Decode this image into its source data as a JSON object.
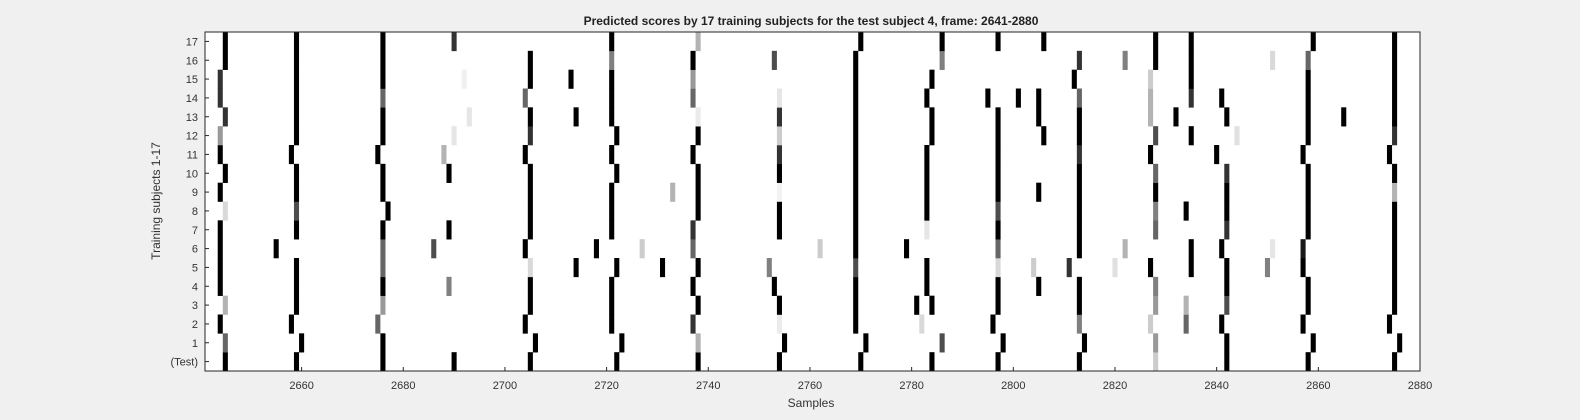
{
  "chart_data": {
    "type": "heatmap",
    "title": "Predicted scores by 17 training subjects for the test subject 4, frame: 2641-2880",
    "xlabel": "Samples",
    "ylabel": "Training subjects 1-17",
    "xlim": [
      2641,
      2880
    ],
    "xticks": [
      2660,
      2680,
      2700,
      2720,
      2740,
      2760,
      2780,
      2800,
      2820,
      2840,
      2860,
      2880
    ],
    "row_labels": [
      "(Test)",
      "1",
      "2",
      "3",
      "4",
      "5",
      "6",
      "7",
      "8",
      "9",
      "10",
      "11",
      "12",
      "13",
      "14",
      "15",
      "16",
      "17"
    ],
    "value_encoding": "grayscale: 0 = white, 1 = black",
    "rows": [
      {
        "label": "(Test)",
        "cells": [
          [
            2645,
            1
          ],
          [
            2659,
            1
          ],
          [
            2676,
            1
          ],
          [
            2690,
            1
          ],
          [
            2705,
            1
          ],
          [
            2722,
            1
          ],
          [
            2738,
            1
          ],
          [
            2754,
            1
          ],
          [
            2770,
            1
          ],
          [
            2784,
            1
          ],
          [
            2797,
            1
          ],
          [
            2813,
            1
          ],
          [
            2828,
            0.2
          ],
          [
            2842,
            1
          ],
          [
            2858,
            1
          ],
          [
            2875,
            1
          ]
        ]
      },
      {
        "label": "1",
        "cells": [
          [
            2645,
            0.6
          ],
          [
            2660,
            1
          ],
          [
            2676,
            1
          ],
          [
            2706,
            1
          ],
          [
            2723,
            1
          ],
          [
            2738,
            0.3
          ],
          [
            2755,
            1
          ],
          [
            2771,
            1
          ],
          [
            2786,
            0.7
          ],
          [
            2798,
            1
          ],
          [
            2814,
            1
          ],
          [
            2828,
            0.4
          ],
          [
            2842,
            1
          ],
          [
            2859,
            1
          ],
          [
            2876,
            1
          ]
        ]
      },
      {
        "label": "2",
        "cells": [
          [
            2644,
            1
          ],
          [
            2658,
            1
          ],
          [
            2675,
            0.6
          ],
          [
            2704,
            1
          ],
          [
            2721,
            1
          ],
          [
            2737,
            0.8
          ],
          [
            2754,
            0.08
          ],
          [
            2769,
            1
          ],
          [
            2782,
            0.15
          ],
          [
            2796,
            1
          ],
          [
            2813,
            0.5
          ],
          [
            2827,
            0.2
          ],
          [
            2834,
            0.6
          ],
          [
            2841,
            1
          ],
          [
            2857,
            1
          ],
          [
            2874,
            1
          ]
        ]
      },
      {
        "label": "3",
        "cells": [
          [
            2645,
            0.3
          ],
          [
            2659,
            1
          ],
          [
            2676,
            0.4
          ],
          [
            2705,
            1
          ],
          [
            2721,
            1
          ],
          [
            2738,
            1
          ],
          [
            2754,
            1
          ],
          [
            2769,
            1
          ],
          [
            2781,
            1
          ],
          [
            2784,
            1
          ],
          [
            2797,
            1
          ],
          [
            2813,
            1
          ],
          [
            2828,
            0.4
          ],
          [
            2834,
            0.3
          ],
          [
            2842,
            0.7
          ],
          [
            2858,
            1
          ],
          [
            2875,
            1
          ]
        ]
      },
      {
        "label": "4",
        "cells": [
          [
            2644,
            1
          ],
          [
            2659,
            1
          ],
          [
            2676,
            1
          ],
          [
            2689,
            0.5
          ],
          [
            2705,
            1
          ],
          [
            2721,
            1
          ],
          [
            2737,
            1
          ],
          [
            2753,
            1
          ],
          [
            2769,
            1
          ],
          [
            2783,
            1
          ],
          [
            2797,
            1
          ],
          [
            2805,
            1
          ],
          [
            2813,
            1
          ],
          [
            2828,
            0.5
          ],
          [
            2842,
            1
          ],
          [
            2858,
            1
          ],
          [
            2875,
            1
          ]
        ]
      },
      {
        "label": "5",
        "cells": [
          [
            2644,
            1
          ],
          [
            2659,
            1
          ],
          [
            2676,
            0.6
          ],
          [
            2705,
            0.15
          ],
          [
            2714,
            1
          ],
          [
            2722,
            1
          ],
          [
            2731,
            1
          ],
          [
            2738,
            1
          ],
          [
            2752,
            0.5
          ],
          [
            2769,
            0.7
          ],
          [
            2783,
            1
          ],
          [
            2797,
            0.15
          ],
          [
            2804,
            0.2
          ],
          [
            2811,
            0.8
          ],
          [
            2820,
            0.12
          ],
          [
            2827,
            1
          ],
          [
            2835,
            1
          ],
          [
            2842,
            1
          ],
          [
            2850,
            0.5
          ],
          [
            2857,
            1
          ],
          [
            2875,
            1
          ]
        ]
      },
      {
        "label": "6",
        "cells": [
          [
            2644,
            1
          ],
          [
            2655,
            1
          ],
          [
            2676,
            0.6
          ],
          [
            2686,
            0.7
          ],
          [
            2704,
            1
          ],
          [
            2718,
            1
          ],
          [
            2727,
            0.2
          ],
          [
            2737,
            0.6
          ],
          [
            2762,
            0.2
          ],
          [
            2769,
            1
          ],
          [
            2779,
            1
          ],
          [
            2797,
            0.6
          ],
          [
            2813,
            1
          ],
          [
            2822,
            0.3
          ],
          [
            2835,
            1
          ],
          [
            2841,
            1
          ],
          [
            2851,
            0.1
          ],
          [
            2857,
            0.9
          ],
          [
            2875,
            1
          ]
        ]
      },
      {
        "label": "7",
        "cells": [
          [
            2644,
            1
          ],
          [
            2659,
            1
          ],
          [
            2676,
            1
          ],
          [
            2689,
            1
          ],
          [
            2705,
            1
          ],
          [
            2721,
            1
          ],
          [
            2737,
            0.8
          ],
          [
            2754,
            1
          ],
          [
            2769,
            1
          ],
          [
            2783,
            0.1
          ],
          [
            2797,
            1
          ],
          [
            2813,
            1
          ],
          [
            2828,
            0.6
          ],
          [
            2842,
            0.8
          ],
          [
            2858,
            1
          ],
          [
            2875,
            1
          ]
        ]
      },
      {
        "label": "8",
        "cells": [
          [
            2645,
            0.15
          ],
          [
            2659,
            0.7
          ],
          [
            2677,
            1
          ],
          [
            2705,
            1
          ],
          [
            2721,
            1
          ],
          [
            2738,
            1
          ],
          [
            2754,
            1
          ],
          [
            2769,
            1
          ],
          [
            2783,
            1
          ],
          [
            2797,
            0.7
          ],
          [
            2813,
            1
          ],
          [
            2828,
            0.5
          ],
          [
            2834,
            1
          ],
          [
            2842,
            1
          ],
          [
            2858,
            1
          ],
          [
            2875,
            1
          ]
        ]
      },
      {
        "label": "9",
        "cells": [
          [
            2644,
            1
          ],
          [
            2659,
            1
          ],
          [
            2676,
            1
          ],
          [
            2705,
            1
          ],
          [
            2721,
            1
          ],
          [
            2733,
            0.3
          ],
          [
            2738,
            1
          ],
          [
            2754,
            0.05
          ],
          [
            2769,
            1
          ],
          [
            2783,
            1
          ],
          [
            2797,
            1
          ],
          [
            2805,
            1
          ],
          [
            2813,
            1
          ],
          [
            2828,
            1
          ],
          [
            2842,
            1
          ],
          [
            2858,
            1
          ],
          [
            2875,
            0.3
          ]
        ]
      },
      {
        "label": "10",
        "cells": [
          [
            2645,
            1
          ],
          [
            2659,
            1
          ],
          [
            2676,
            1
          ],
          [
            2689,
            1
          ],
          [
            2705,
            1
          ],
          [
            2722,
            1
          ],
          [
            2738,
            1
          ],
          [
            2754,
            1
          ],
          [
            2769,
            1
          ],
          [
            2783,
            1
          ],
          [
            2797,
            1
          ],
          [
            2813,
            1
          ],
          [
            2828,
            0.6
          ],
          [
            2842,
            0.8
          ],
          [
            2858,
            1
          ],
          [
            2875,
            1
          ]
        ]
      },
      {
        "label": "11",
        "cells": [
          [
            2644,
            1
          ],
          [
            2658,
            1
          ],
          [
            2675,
            1
          ],
          [
            2688,
            0.3
          ],
          [
            2704,
            1
          ],
          [
            2721,
            1
          ],
          [
            2737,
            1
          ],
          [
            2754,
            0.8
          ],
          [
            2769,
            1
          ],
          [
            2783,
            1
          ],
          [
            2797,
            1
          ],
          [
            2813,
            0.8
          ],
          [
            2827,
            1
          ],
          [
            2840,
            1
          ],
          [
            2857,
            1
          ],
          [
            2874,
            1
          ]
        ]
      },
      {
        "label": "12",
        "cells": [
          [
            2644,
            0.4
          ],
          [
            2659,
            1
          ],
          [
            2676,
            1
          ],
          [
            2690,
            0.1
          ],
          [
            2705,
            0.8
          ],
          [
            2722,
            1
          ],
          [
            2738,
            1
          ],
          [
            2754,
            0.2
          ],
          [
            2769,
            1
          ],
          [
            2784,
            1
          ],
          [
            2797,
            1
          ],
          [
            2806,
            1
          ],
          [
            2813,
            1
          ],
          [
            2828,
            0.7
          ],
          [
            2835,
            1
          ],
          [
            2844,
            0.12
          ],
          [
            2858,
            1
          ],
          [
            2875,
            0.8
          ]
        ]
      },
      {
        "label": "13",
        "cells": [
          [
            2645,
            0.8
          ],
          [
            2659,
            1
          ],
          [
            2676,
            1
          ],
          [
            2693,
            0.1
          ],
          [
            2705,
            1
          ],
          [
            2714,
            1
          ],
          [
            2721,
            1
          ],
          [
            2738,
            0.08
          ],
          [
            2754,
            0.8
          ],
          [
            2769,
            1
          ],
          [
            2784,
            1
          ],
          [
            2797,
            1
          ],
          [
            2805,
            1
          ],
          [
            2813,
            1
          ],
          [
            2827,
            0.3
          ],
          [
            2832,
            1
          ],
          [
            2842,
            1
          ],
          [
            2858,
            1
          ],
          [
            2865,
            1
          ],
          [
            2875,
            1
          ]
        ]
      },
      {
        "label": "14",
        "cells": [
          [
            2644,
            0.8
          ],
          [
            2659,
            1
          ],
          [
            2676,
            0.6
          ],
          [
            2704,
            0.6
          ],
          [
            2721,
            1
          ],
          [
            2737,
            0.6
          ],
          [
            2754,
            0.1
          ],
          [
            2769,
            1
          ],
          [
            2783,
            1
          ],
          [
            2795,
            1
          ],
          [
            2801,
            1
          ],
          [
            2805,
            1
          ],
          [
            2813,
            0.6
          ],
          [
            2827,
            0.3
          ],
          [
            2835,
            0.8
          ],
          [
            2841,
            1
          ],
          [
            2858,
            1
          ],
          [
            2875,
            1
          ]
        ]
      },
      {
        "label": "15",
        "cells": [
          [
            2644,
            0.8
          ],
          [
            2659,
            1
          ],
          [
            2676,
            1
          ],
          [
            2692,
            0.06
          ],
          [
            2705,
            1
          ],
          [
            2713,
            1
          ],
          [
            2721,
            1
          ],
          [
            2737,
            0.4
          ],
          [
            2769,
            1
          ],
          [
            2784,
            1
          ],
          [
            2812,
            1
          ],
          [
            2827,
            0.2
          ],
          [
            2835,
            1
          ],
          [
            2858,
            1
          ],
          [
            2875,
            1
          ]
        ]
      },
      {
        "label": "16",
        "cells": [
          [
            2645,
            1
          ],
          [
            2659,
            1
          ],
          [
            2676,
            1
          ],
          [
            2705,
            1
          ],
          [
            2721,
            0.5
          ],
          [
            2737,
            1
          ],
          [
            2753,
            0.7
          ],
          [
            2769,
            1
          ],
          [
            2786,
            0.5
          ],
          [
            2813,
            0.8
          ],
          [
            2822,
            0.5
          ],
          [
            2828,
            1
          ],
          [
            2835,
            1
          ],
          [
            2851,
            0.15
          ],
          [
            2858,
            0.6
          ],
          [
            2875,
            1
          ]
        ]
      },
      {
        "label": "17",
        "cells": [
          [
            2645,
            1
          ],
          [
            2659,
            1
          ],
          [
            2676,
            1
          ],
          [
            2690,
            0.8
          ],
          [
            2721,
            1
          ],
          [
            2738,
            0.3
          ],
          [
            2770,
            1
          ],
          [
            2786,
            1
          ],
          [
            2797,
            1
          ],
          [
            2806,
            1
          ],
          [
            2828,
            1
          ],
          [
            2835,
            1
          ],
          [
            2859,
            1
          ],
          [
            2875,
            1
          ]
        ]
      }
    ]
  }
}
